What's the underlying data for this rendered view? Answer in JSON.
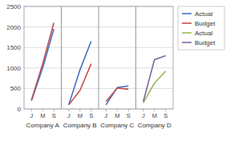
{
  "chart_data": {
    "type": "line",
    "ylim": [
      0,
      2500
    ],
    "yticks": [
      0,
      500,
      1000,
      1500,
      2000,
      2500
    ],
    "grid": true,
    "legend": "right",
    "panels": [
      {
        "name": "Company A",
        "categories": [
          "J",
          "M",
          "S"
        ],
        "series": [
          {
            "name": "Actual",
            "color": "#4472C4",
            "values": [
              200,
              1000,
              1950
            ]
          },
          {
            "name": "Budget",
            "color": "#C0504D",
            "values": [
              220,
              1100,
              2100
            ]
          }
        ]
      },
      {
        "name": "Company B",
        "categories": [
          "J",
          "M",
          "S"
        ],
        "series": [
          {
            "name": "Actual",
            "color": "#4472C4",
            "values": [
              100,
              950,
              1650
            ]
          },
          {
            "name": "Budget",
            "color": "#C0504D",
            "values": [
              100,
              450,
              1100
            ]
          }
        ]
      },
      {
        "name": "Company C",
        "categories": [
          "J",
          "M",
          "S"
        ],
        "series": [
          {
            "name": "Actual",
            "color": "#4472C4",
            "values": [
              100,
              520,
              560
            ]
          },
          {
            "name": "Budget",
            "color": "#C0504D",
            "values": [
              180,
              510,
              480
            ]
          }
        ]
      },
      {
        "name": "Company D",
        "categories": [
          "J",
          "M",
          "S"
        ],
        "series": [
          {
            "name": "Actual",
            "color": "#9BBB59",
            "values": [
              150,
              630,
              920
            ]
          },
          {
            "name": "Budget",
            "color": "#8064A2",
            "values": [
              180,
              1200,
              1300
            ]
          }
        ]
      }
    ]
  }
}
